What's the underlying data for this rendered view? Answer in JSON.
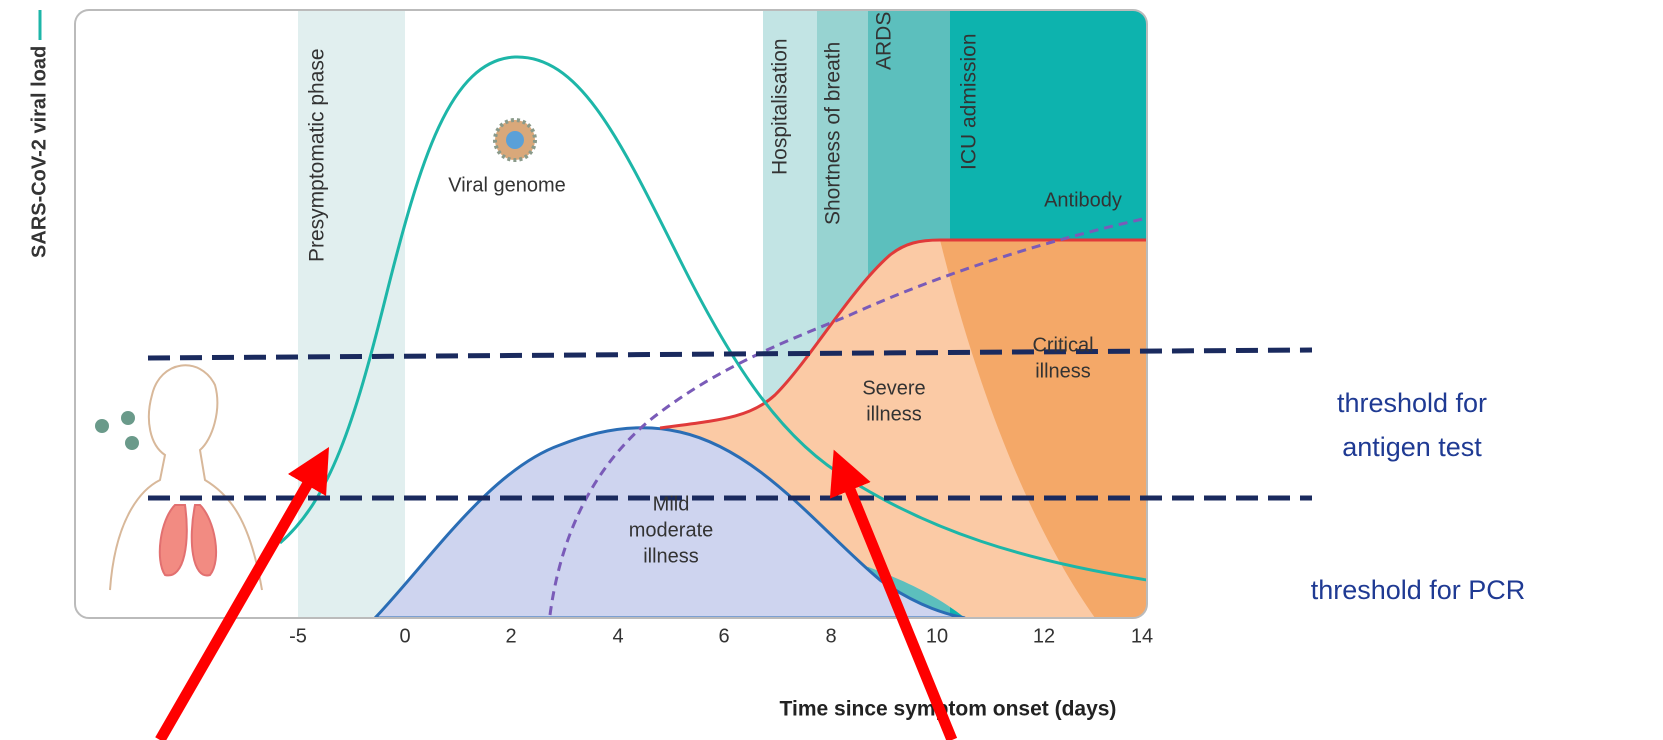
{
  "y_axis_label": "SARS-CoV-2 viral load",
  "x_axis_label": "Time since symptom onset (days)",
  "x_ticks": [
    "-5",
    "0",
    "2",
    "4",
    "6",
    "8",
    "10",
    "12",
    "14"
  ],
  "phases": [
    "Presymptomatic phase",
    "Hospitalisation",
    "Shortness of breath",
    "ARDS",
    "ICU admission"
  ],
  "curve_labels": {
    "viral_genome": "Viral genome",
    "antibody": "Antibody"
  },
  "regions": {
    "mild": [
      "Mild",
      "moderate",
      "illness"
    ],
    "severe": [
      "Severe",
      "illness"
    ],
    "critical": [
      "Critical",
      "illness"
    ]
  },
  "thresholds": {
    "antigen": [
      "threshold for",
      "antigen test"
    ],
    "pcr": "threshold for PCR"
  }
}
